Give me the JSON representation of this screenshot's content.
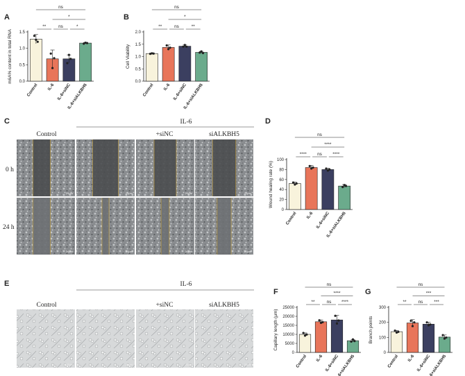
{
  "panels": {
    "A": "A",
    "B": "B",
    "C": "C",
    "D": "D",
    "E": "E",
    "F": "F",
    "G": "G"
  },
  "images": {
    "header_il6": "IL-6",
    "columns": [
      "Control",
      "",
      "+siNC",
      "siALKBH5"
    ],
    "rows": [
      "0 h",
      "24 h"
    ],
    "scale_bar": "20μm"
  },
  "colors": {
    "Control": "#f8f3dc",
    "IL-6": "#e8755a",
    "IL-6+siNC": "#3b3f60",
    "IL-6+siALKBH5": "#6bab8c"
  },
  "chart_data": [
    {
      "panel": "A",
      "type": "bar",
      "categories": [
        "Control",
        "IL-6",
        "IL-6+siNC",
        "IL-6+siALKBH5"
      ],
      "values": [
        1.28,
        0.68,
        0.68,
        1.16
      ],
      "errors": [
        0.14,
        0.27,
        0.12,
        0.02
      ],
      "points": [
        [
          1.38,
          1.26,
          1.2
        ],
        [
          0.84,
          0.4,
          0.7
        ],
        [
          0.55,
          0.8,
          0.68
        ],
        [
          1.14,
          1.17,
          1.16
        ]
      ],
      "ylabel": "m6A% content in total RNA",
      "ylim": [
        0,
        1.5
      ],
      "yticks": [
        0.0,
        0.5,
        1.0,
        1.5
      ],
      "significance": [
        {
          "from": 0,
          "to": 1,
          "label": "**"
        },
        {
          "from": 1,
          "to": 2,
          "label": "ns"
        },
        {
          "from": 2,
          "to": 3,
          "label": "*"
        },
        {
          "from": 1,
          "to": 3,
          "label": "*"
        },
        {
          "from": 0,
          "to": 3,
          "label": "ns"
        }
      ]
    },
    {
      "panel": "B",
      "type": "bar",
      "categories": [
        "Control",
        "IL-6",
        "IL-6+siNC",
        "IL-6+siALKBH5"
      ],
      "values": [
        1.12,
        1.37,
        1.42,
        1.17
      ],
      "errors": [
        0.02,
        0.1,
        0.05,
        0.04
      ],
      "points": [
        [
          1.11,
          1.13,
          1.12
        ],
        [
          1.45,
          1.3,
          1.36
        ],
        [
          1.4,
          1.47,
          1.4
        ],
        [
          1.16,
          1.21,
          1.14
        ]
      ],
      "ylabel": "Cell Viability",
      "ylim": [
        0,
        2.0
      ],
      "yticks": [
        0.0,
        0.5,
        1.0,
        1.5,
        2.0
      ],
      "significance": [
        {
          "from": 0,
          "to": 1,
          "label": "**"
        },
        {
          "from": 1,
          "to": 2,
          "label": "ns"
        },
        {
          "from": 2,
          "to": 3,
          "label": "**"
        },
        {
          "from": 1,
          "to": 3,
          "label": "*"
        },
        {
          "from": 0,
          "to": 3,
          "label": "ns"
        }
      ]
    },
    {
      "panel": "D",
      "type": "bar",
      "categories": [
        "Control",
        "IL-6",
        "IL-6+siNC",
        "IL-6+siALKBH5"
      ],
      "values": [
        52,
        84,
        80,
        47
      ],
      "errors": [
        3,
        4,
        2.5,
        3
      ],
      "points": [
        [
          54,
          50,
          52
        ],
        [
          87,
          82,
          84
        ],
        [
          82,
          78,
          80
        ],
        [
          45,
          49,
          47
        ]
      ],
      "ylabel": "Wound healing rate (%)",
      "ylim": [
        0,
        100
      ],
      "yticks": [
        0,
        20,
        40,
        60,
        80,
        100
      ],
      "significance": [
        {
          "from": 0,
          "to": 1,
          "label": "****"
        },
        {
          "from": 1,
          "to": 2,
          "label": "ns"
        },
        {
          "from": 2,
          "to": 3,
          "label": "****"
        },
        {
          "from": 1,
          "to": 3,
          "label": "****"
        },
        {
          "from": 0,
          "to": 3,
          "label": "ns"
        }
      ]
    },
    {
      "panel": "F",
      "type": "bar",
      "categories": [
        "Control",
        "IL-6",
        "IL-6+siNC",
        "IL-6+siALKBH5"
      ],
      "values": [
        10000,
        17000,
        18000,
        6500
      ],
      "errors": [
        800,
        1000,
        2500,
        600
      ],
      "points": [
        [
          10800,
          9300,
          9900
        ],
        [
          17800,
          16400,
          16800
        ],
        [
          20300,
          16000,
          17700
        ],
        [
          6000,
          7200,
          6300
        ]
      ],
      "ylabel": "Capillary length (μm)",
      "ylim": [
        0,
        25000
      ],
      "yticks": [
        0,
        5000,
        10000,
        15000,
        20000,
        25000
      ],
      "significance": [
        {
          "from": 0,
          "to": 1,
          "label": "**"
        },
        {
          "from": 1,
          "to": 2,
          "label": "ns"
        },
        {
          "from": 2,
          "to": 3,
          "label": "****"
        },
        {
          "from": 1,
          "to": 3,
          "label": "****"
        },
        {
          "from": 0,
          "to": 3,
          "label": "ns"
        }
      ]
    },
    {
      "panel": "G",
      "type": "bar",
      "categories": [
        "Control",
        "IL-6",
        "IL-6+siNC",
        "IL-6+siALKBH5"
      ],
      "values": [
        138,
        196,
        188,
        102
      ],
      "errors": [
        8,
        22,
        12,
        14
      ],
      "points": [
        [
          145,
          132,
          137
        ],
        [
          210,
          175,
          200
        ],
        [
          200,
          180,
          186
        ],
        [
          115,
          92,
          99
        ]
      ],
      "ylabel": "Branch points",
      "ylim": [
        0,
        300
      ],
      "yticks": [
        0,
        100,
        200,
        300
      ],
      "significance": [
        {
          "from": 0,
          "to": 1,
          "label": "**"
        },
        {
          "from": 1,
          "to": 2,
          "label": "ns"
        },
        {
          "from": 2,
          "to": 3,
          "label": "***"
        },
        {
          "from": 1,
          "to": 3,
          "label": "***"
        },
        {
          "from": 0,
          "to": 3,
          "label": "ns"
        }
      ]
    }
  ]
}
